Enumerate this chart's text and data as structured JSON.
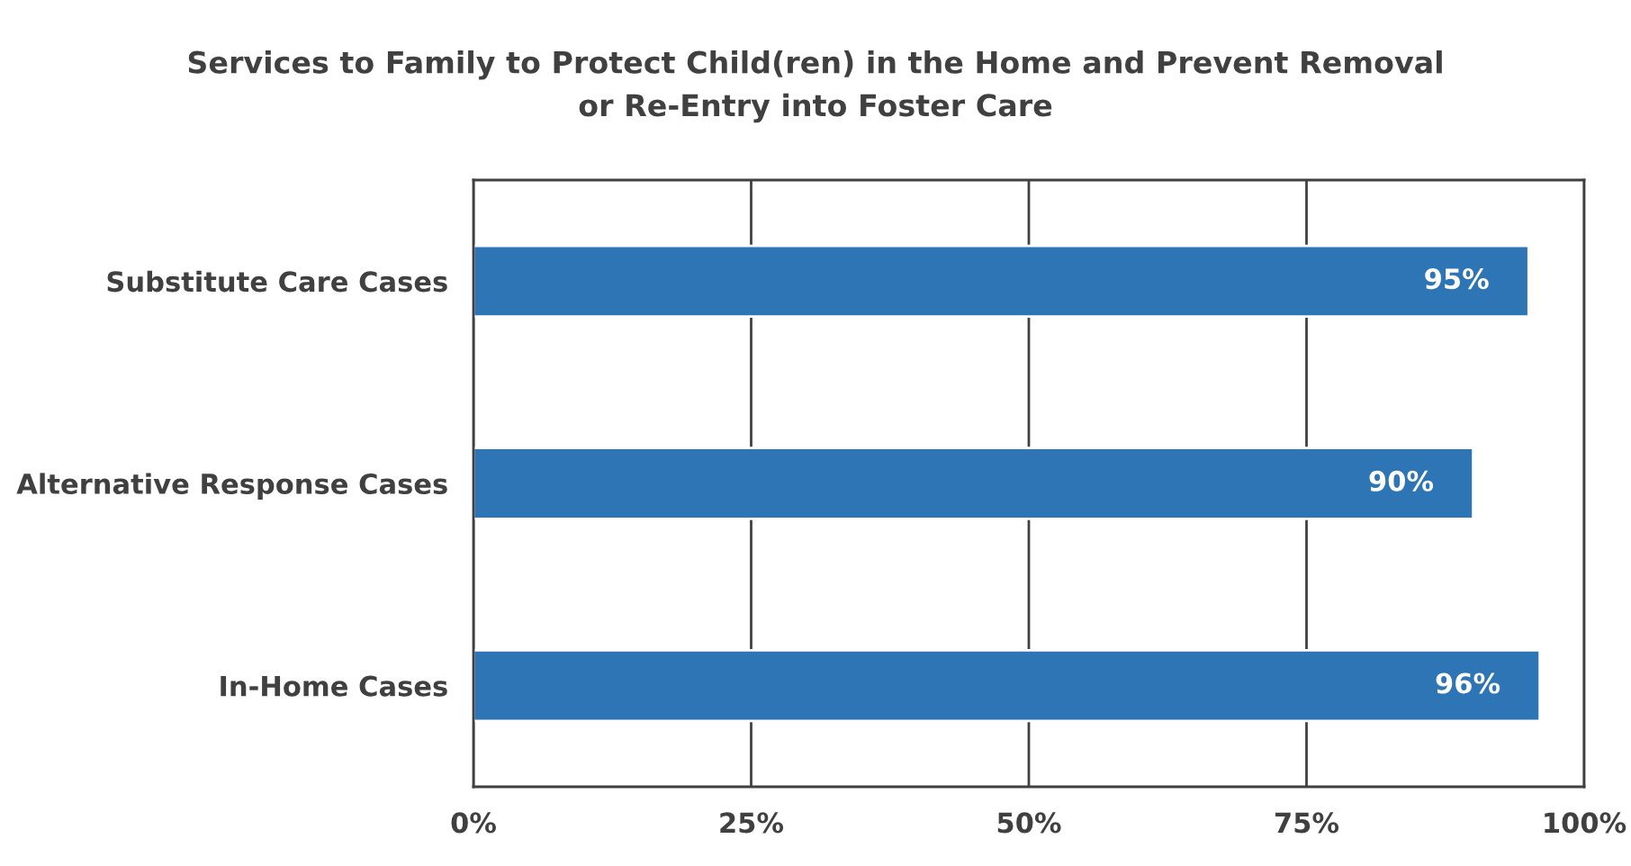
{
  "chart_data": {
    "type": "bar",
    "orientation": "horizontal",
    "title": "Services to Family to Protect Child(ren) in the Home and Prevent Removal\nor Re-Entry into Foster Care",
    "categories": [
      "Substitute Care Cases",
      "Alternative Response Cases",
      "In-Home Cases"
    ],
    "values": [
      95,
      90,
      96
    ],
    "value_labels": [
      "95%",
      "90%",
      "96%"
    ],
    "color": "#2e75b6",
    "xlim": [
      0,
      100
    ],
    "xticks": [
      {
        "value": 0,
        "label": "0%"
      },
      {
        "value": 25,
        "label": "25%"
      },
      {
        "value": 50,
        "label": "50%"
      },
      {
        "value": 75,
        "label": "75%"
      },
      {
        "value": 100,
        "label": "100%"
      }
    ],
    "grid": "x",
    "legend": false
  }
}
